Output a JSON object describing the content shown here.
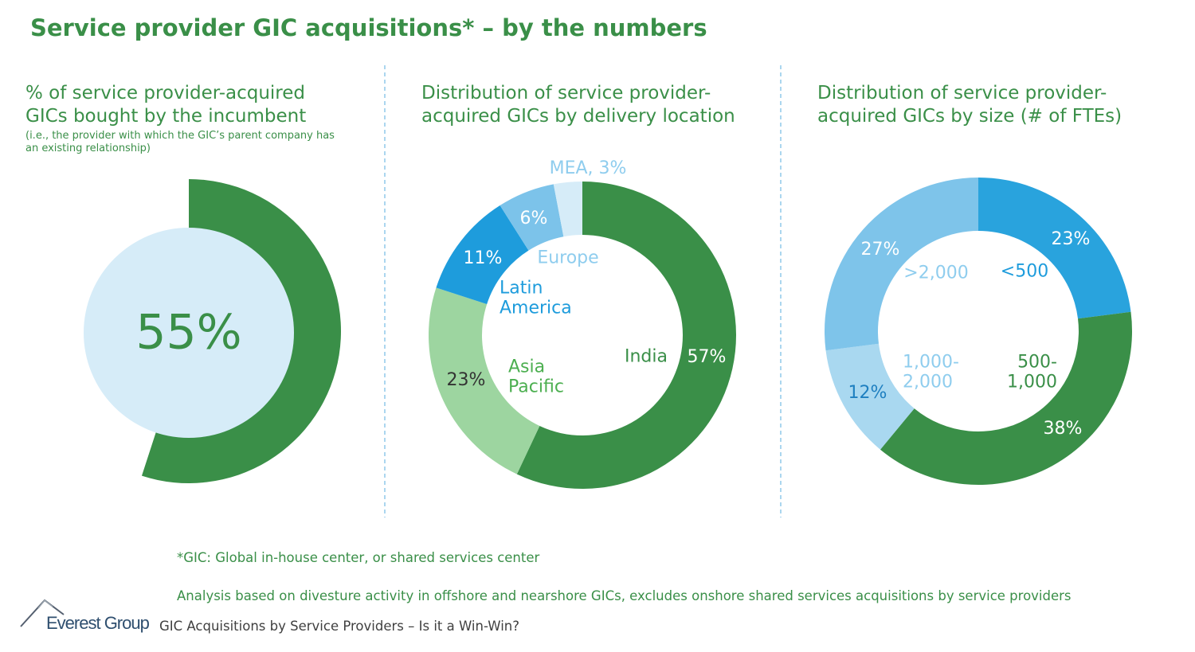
{
  "title": "Service provider GIC acquisitions* – by the numbers",
  "chart_data": [
    {
      "type": "radial",
      "title": "% of service provider-acquired\nGICs bought by the incumbent",
      "subtitle": "(i.e., the provider with which the GIC’s parent company has\nan existing relationship)",
      "values": [
        55
      ],
      "value_labels": [
        "55%"
      ],
      "color": "#3a8f48",
      "background_color": "#d6ecf8"
    },
    {
      "type": "donut",
      "title": "Distribution of service provider-\nacquired GICs by delivery location",
      "categories": [
        "India",
        "Asia\nPacific",
        "Latin\nAmerica",
        "Europe",
        null
      ],
      "values": [
        57,
        23,
        11,
        6,
        3
      ],
      "value_labels": [
        "57%",
        "23%",
        "11%",
        "6%",
        "MEA, 3%"
      ],
      "colors": [
        "#3a8f48",
        "#9dd5a0",
        "#1e9cdc",
        "#7cc3ea",
        "#d6ecf8"
      ]
    },
    {
      "type": "donut",
      "title": "Distribution of service provider-\nacquired GICs by size (# of FTEs)",
      "categories": [
        "<500",
        "500-\n1,000",
        "1,000-\n2,000",
        ">2,000"
      ],
      "values": [
        23,
        38,
        12,
        27
      ],
      "value_labels": [
        "23%",
        "38%",
        "12%",
        "27%"
      ],
      "colors": [
        "#29a3dd",
        "#3a8f48",
        "#a9d8f0",
        "#7ec4ea"
      ]
    }
  ],
  "footnotes": [
    "*GIC: Global in-house center, or shared services center",
    "Analysis based on divesture activity in offshore and nearshore GICs, excludes onshore shared services acquisitions by service providers"
  ],
  "footer": {
    "brand": "Everest Group",
    "text": "GIC Acquisitions by Service Providers – Is it a Win-Win?"
  }
}
